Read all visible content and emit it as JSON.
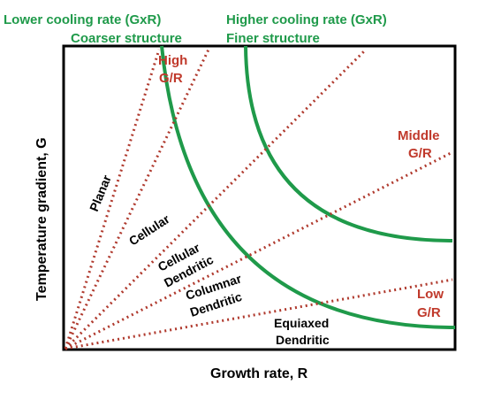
{
  "header": {
    "left_line1": "Lower cooling rate (GxR)",
    "left_line2": "Coarser structure",
    "right_line1": "Higher cooling rate (GxR)",
    "right_line2": "Finer structure"
  },
  "ratio_labels": {
    "high_1": "High",
    "high_2": "G/R",
    "middle_1": "Middle",
    "middle_2": "G/R",
    "low_1": "Low",
    "low_2": "G/R"
  },
  "regions": {
    "planar": "Planar",
    "cellular": "Cellular",
    "cellular_dendritic_1": "Cellular",
    "cellular_dendritic_2": "Dendritic",
    "columnar_dendritic_1": "Columnar",
    "columnar_dendritic_2": "Dendritic",
    "equiaxed_dendritic_1": "Equiaxed",
    "equiaxed_dendritic_2": "Dendritic"
  },
  "axes": {
    "x_label": "Growth rate, R",
    "y_label": "Temperature gradient, G"
  },
  "colors": {
    "curve": "#1f9a4a",
    "dotted_line": "#b03a2e",
    "frame": "#000000"
  }
}
